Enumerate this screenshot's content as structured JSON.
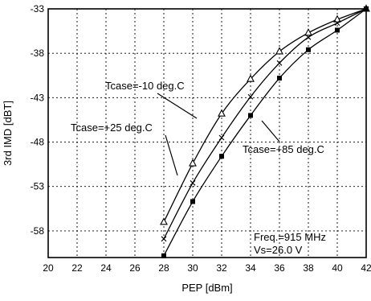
{
  "chart_data": {
    "type": "line",
    "title": "",
    "xlabel": "PEP  [dBm]",
    "ylabel": "3rd IMD  [dBT]",
    "xlim": [
      20,
      42
    ],
    "ylim": [
      -61,
      -33
    ],
    "x_ticks": [
      "20",
      "22",
      "24",
      "26",
      "28",
      "30",
      "32",
      "34",
      "36",
      "38",
      "40",
      "42"
    ],
    "y_ticks": [
      "-33",
      "-38",
      "-43",
      "-48",
      "-53",
      "-58"
    ],
    "grid": true,
    "series": [
      {
        "name": "Tcase=-10  deg.C",
        "marker": "triangle",
        "x": [
          28,
          30,
          32,
          34,
          36,
          38,
          40,
          42
        ],
        "y": [
          -57.0,
          -50.4,
          -44.8,
          -40.9,
          -37.8,
          -35.7,
          -34.2,
          -33.0
        ]
      },
      {
        "name": "Tcase=+25  deg.C",
        "marker": "cross",
        "x": [
          28,
          30,
          32,
          34,
          36,
          38,
          40,
          42
        ],
        "y": [
          -58.9,
          -52.6,
          -47.5,
          -42.9,
          -39.1,
          -36.2,
          -34.6,
          -33.0
        ]
      },
      {
        "name": "Tcase=+85  deg.C",
        "marker": "square",
        "x": [
          28,
          30,
          32,
          34,
          36,
          38,
          40,
          42
        ],
        "y": [
          -60.8,
          -54.7,
          -49.6,
          -45.0,
          -40.8,
          -37.6,
          -35.4,
          -33.0
        ]
      }
    ],
    "annotations": [
      "Freq.=915  MHz",
      "Vs=26.0  V"
    ]
  }
}
